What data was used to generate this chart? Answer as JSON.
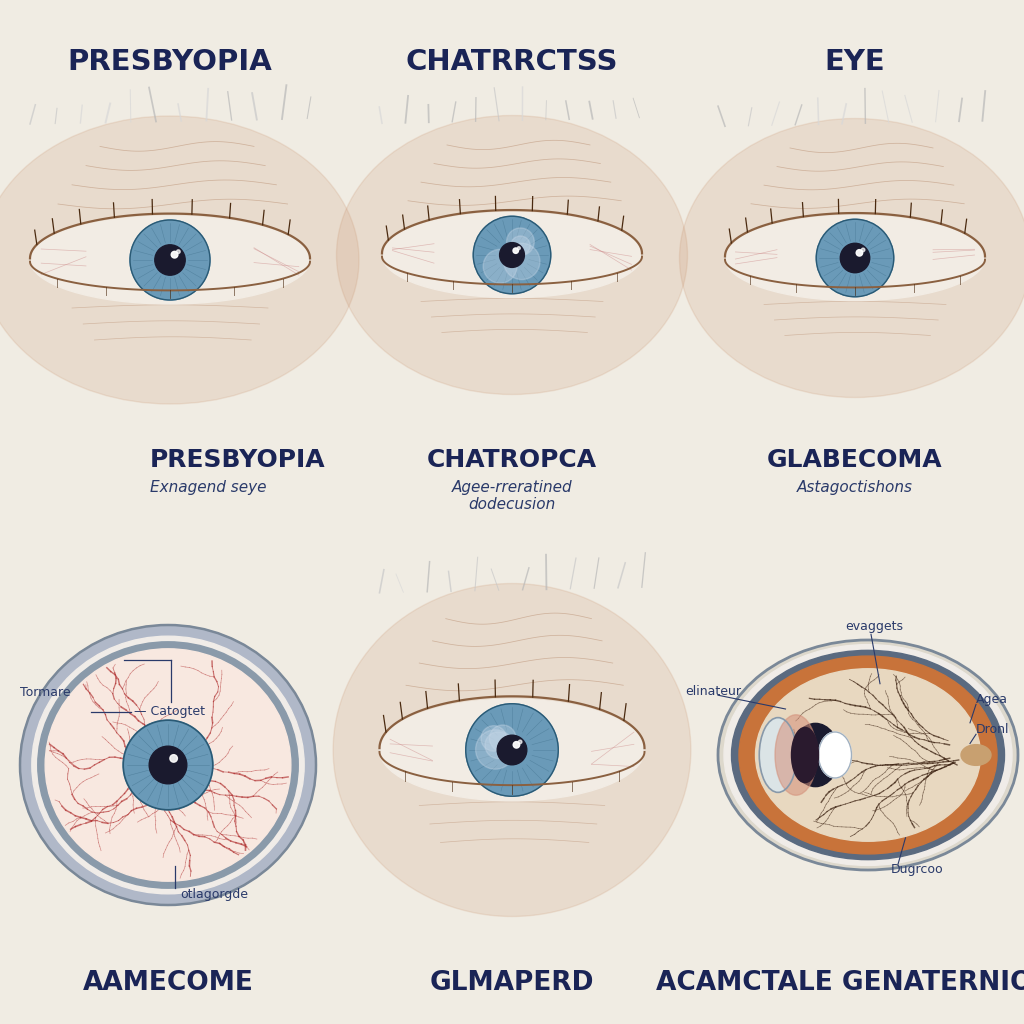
{
  "background_color": "#f0ece3",
  "title_color": "#1a2456",
  "annotation_color": "#2a3a6a",
  "top_titles": [
    "PRESBYOPIA",
    "CHATRRCTSS",
    "EYE"
  ],
  "bottom_titles": [
    "PRESBYOPIA",
    "CHATROPCA",
    "GLABECOMA"
  ],
  "bottom_subtitles": [
    "Exnagend seye",
    "Agee-rreratined\ndodecusion",
    "Astagoctishons"
  ],
  "bottom_labels": [
    "AAMECOME",
    "GLMAPERD",
    "ACAMCTALE GENATERNION"
  ],
  "iris_color": "#6a9ab8",
  "iris_dark": "#4a7a95",
  "pupil_color": "#1a1a2e",
  "sclera_color": "#f2ece4",
  "skin_color": "#d4956a",
  "blood_vessel_color": "#b03030",
  "sclera_ring_color": "#7a8a9a",
  "retina_orange": "#c8733a",
  "retina_bg": "#e8c4a0",
  "choroid_color": "#8a8aaa"
}
